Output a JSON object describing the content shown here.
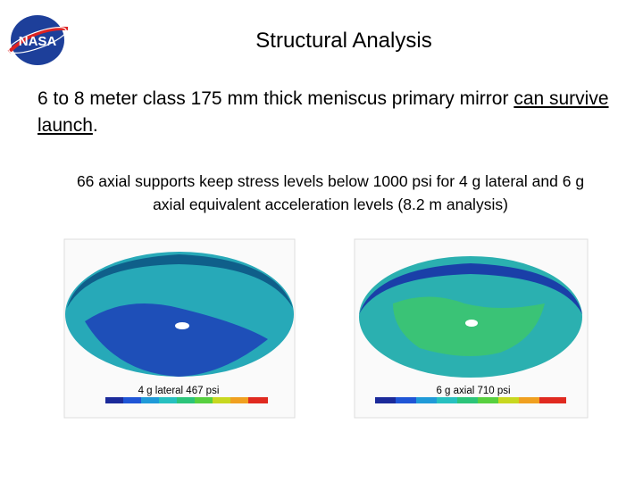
{
  "header": {
    "title": "Structural Analysis",
    "logo": "NASA"
  },
  "main_point": {
    "text": "6 to 8 meter class 175 mm thick meniscus primary mirror",
    "emphasis": "can survive launch",
    "end": "."
  },
  "sub_point": "66 axial supports keep stress levels below 1000 psi for 4 g lateral and 6 g axial equivalent acceleration levels (8.2 m analysis)",
  "figures": [
    {
      "caption": "4 g lateral 467 psi"
    },
    {
      "caption": "6 g axial 710 psi"
    }
  ]
}
